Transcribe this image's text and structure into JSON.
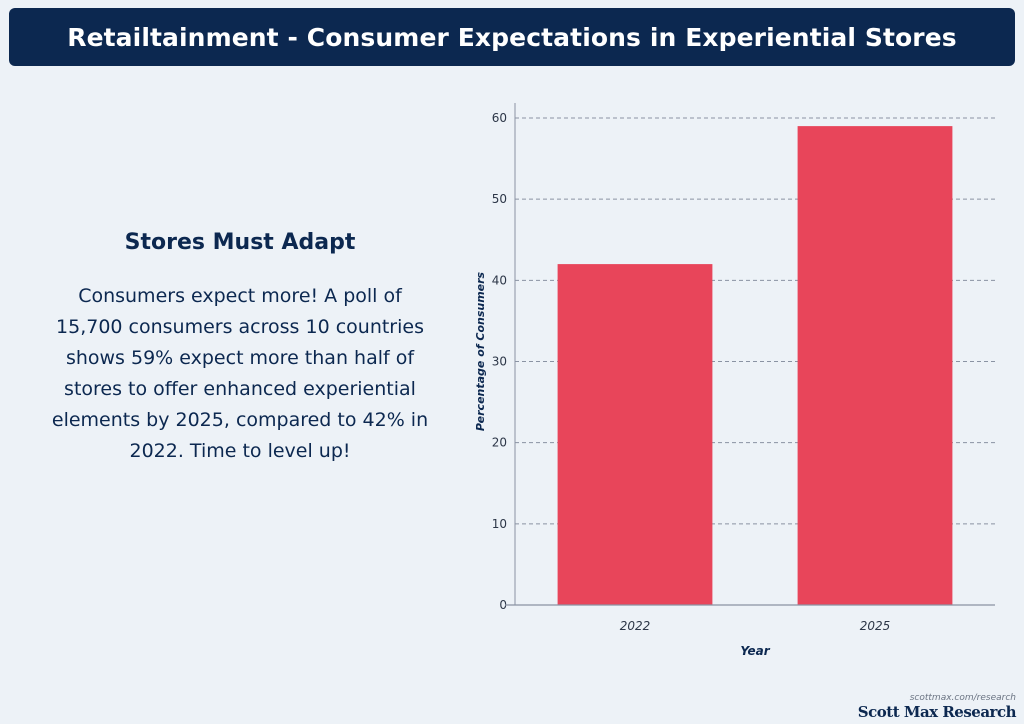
{
  "header": {
    "title": "Retailtainment - Consumer Expectations in Experiential Stores"
  },
  "panel": {
    "subtitle": "Stores Must Adapt",
    "body": "Consumers expect more! A poll of 15,700 consumers across 10 countries shows 59% expect more than half of stores to offer enhanced experiential elements by 2025, compared to 42% in 2022. Time to level up!"
  },
  "chart_data": {
    "type": "bar",
    "categories": [
      "2022",
      "2025"
    ],
    "values": [
      42,
      59
    ],
    "xlabel": "Year",
    "ylabel": "Percentage of Consumers",
    "ylim": [
      0,
      60
    ],
    "yticks": [
      0,
      10,
      20,
      30,
      40,
      50,
      60
    ],
    "grid": true,
    "bar_color": "#e8455a"
  },
  "footer": {
    "url": "scottmax.com/research",
    "brand": "Scott Max Research"
  },
  "colors": {
    "navy": "#0c2850",
    "background": "#edf2f7"
  }
}
